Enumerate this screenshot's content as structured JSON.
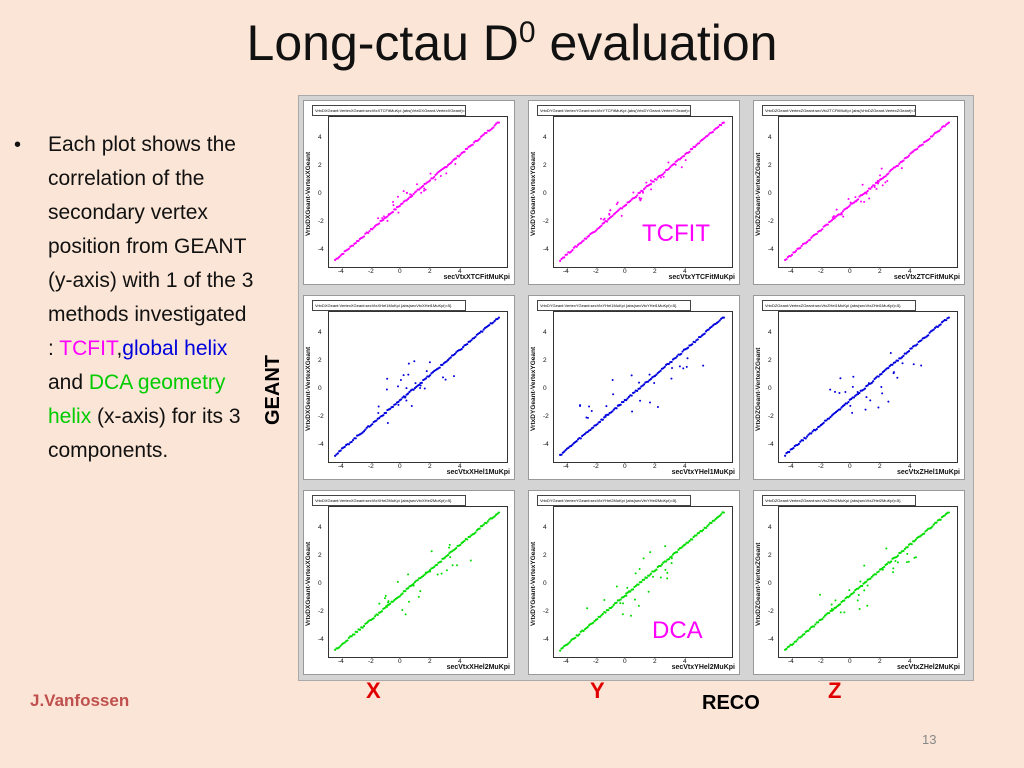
{
  "title": {
    "main": "Long-ctau D",
    "sup": "0",
    "rest": " evaluation"
  },
  "bullet": {
    "symbol": "•",
    "text_before": "Each plot shows the correlation of the secondary vertex position from GEANT (y-axis) with 1 of the 3 methods investigated : ",
    "tcfit": "TCFIT",
    "comma": ",",
    "global_helix": "global helix",
    "and": " and ",
    "dca_helix": "DCA geometry helix",
    "text_after": " (x-axis) for its 3 components."
  },
  "colors": {
    "tcfit": "#ff00ff",
    "global": "#0000dd",
    "dca": "#00cc00",
    "axis_letters": "#e00000",
    "author": "#c0504d",
    "background": "#fbe5d6"
  },
  "method_labels": {
    "tcfit": "TCFIT",
    "dca": "DCA"
  },
  "geant_label": "GEANT",
  "axis_letters": {
    "x": "X",
    "y": "Y",
    "z": "Z"
  },
  "reco_label": "RECO",
  "author": "J.Vanfossen",
  "page_number": "13",
  "plot_ticks": {
    "x": [
      "-4",
      "-2",
      "0",
      "2",
      "4"
    ],
    "y": [
      "4",
      "2",
      "0",
      "-2",
      "-4"
    ]
  },
  "plots": [
    {
      "title": "VrtxDXGeant:VertexXGeant:secVtxXTCFitMuKpi {abs(VrtxDXGeant-VertexXGeant)<5}",
      "ylabel": "VrtxDXGeant-VertexXGeant",
      "xlabel": "secVtxXTCFitMuKpi",
      "color": "#ff00ff",
      "scatter": 0.06
    },
    {
      "title": "VrtxDYGeant:VertexYGeant:secVtxYTCFitMuKpi {abs(VrtxDYGeant-VertexYGeant)<5}",
      "ylabel": "VrtxDYGeant-VertexYGeant",
      "xlabel": "secVtxYTCFitMuKpi",
      "color": "#ff00ff",
      "scatter": 0.06
    },
    {
      "title": "VrtxDZGeant:VertexZGeant:secVtxZTCFitMuKpi {abs(VrtxDZGeant-VertexZGeant)<5}",
      "ylabel": "VrtxDZGeant-VertexZGeant",
      "xlabel": "secVtxZTCFitMuKpi",
      "color": "#ff00ff",
      "scatter": 0.06
    },
    {
      "title": "VrtxDXGeant:VertexXGeant:secVtxXHel1MuKpi {abs(secVtxXHel1MuKpi)<5}",
      "ylabel": "VrtxDXGeant-VertexXGeant",
      "xlabel": "secVtxXHel1MuKpi",
      "color": "#0000dd",
      "scatter": 0.18
    },
    {
      "title": "VrtxDYGeant:VertexYGeant:secVtxYHel1MuKpi {abs(secVtxYHel1MuKpi)<5}",
      "ylabel": "VrtxDYGeant-VertexYGeant",
      "xlabel": "secVtxYHel1MuKpi",
      "color": "#0000dd",
      "scatter": 0.18
    },
    {
      "title": "VrtxDZGeant:VertexZGeant:secVtxZHel1MuKpi {abs(secVtxZHel1MuKpi)<5}",
      "ylabel": "VrtxDZGeant-VertexZGeant",
      "xlabel": "secVtxZHel1MuKpi",
      "color": "#0000dd",
      "scatter": 0.18
    },
    {
      "title": "VrtxDXGeant:VertexXGeant:secVtxXHel2MuKpi {abs(secVtxXHel2MuKpi)<5}",
      "ylabel": "VrtxDXGeant-VertexXGeant",
      "xlabel": "secVtxXHel2MuKpi",
      "color": "#00dd00",
      "scatter": 0.14
    },
    {
      "title": "VrtxDYGeant:VertexYGeant:secVtxYHel2MuKpi {abs(secVtxYHel2MuKpi)<5}",
      "ylabel": "VrtxDYGeant-VertexYGeant",
      "xlabel": "secVtxYHel2MuKpi",
      "color": "#00dd00",
      "scatter": 0.14
    },
    {
      "title": "VrtxDZGeant:VertexZGeant:secVtxZHel2MuKpi {abs(secVtxZHel2MuKpi)<5}",
      "ylabel": "VrtxDZGeant-VertexZGeant",
      "xlabel": "secVtxZHel2MuKpi",
      "color": "#00dd00",
      "scatter": 0.14
    }
  ]
}
